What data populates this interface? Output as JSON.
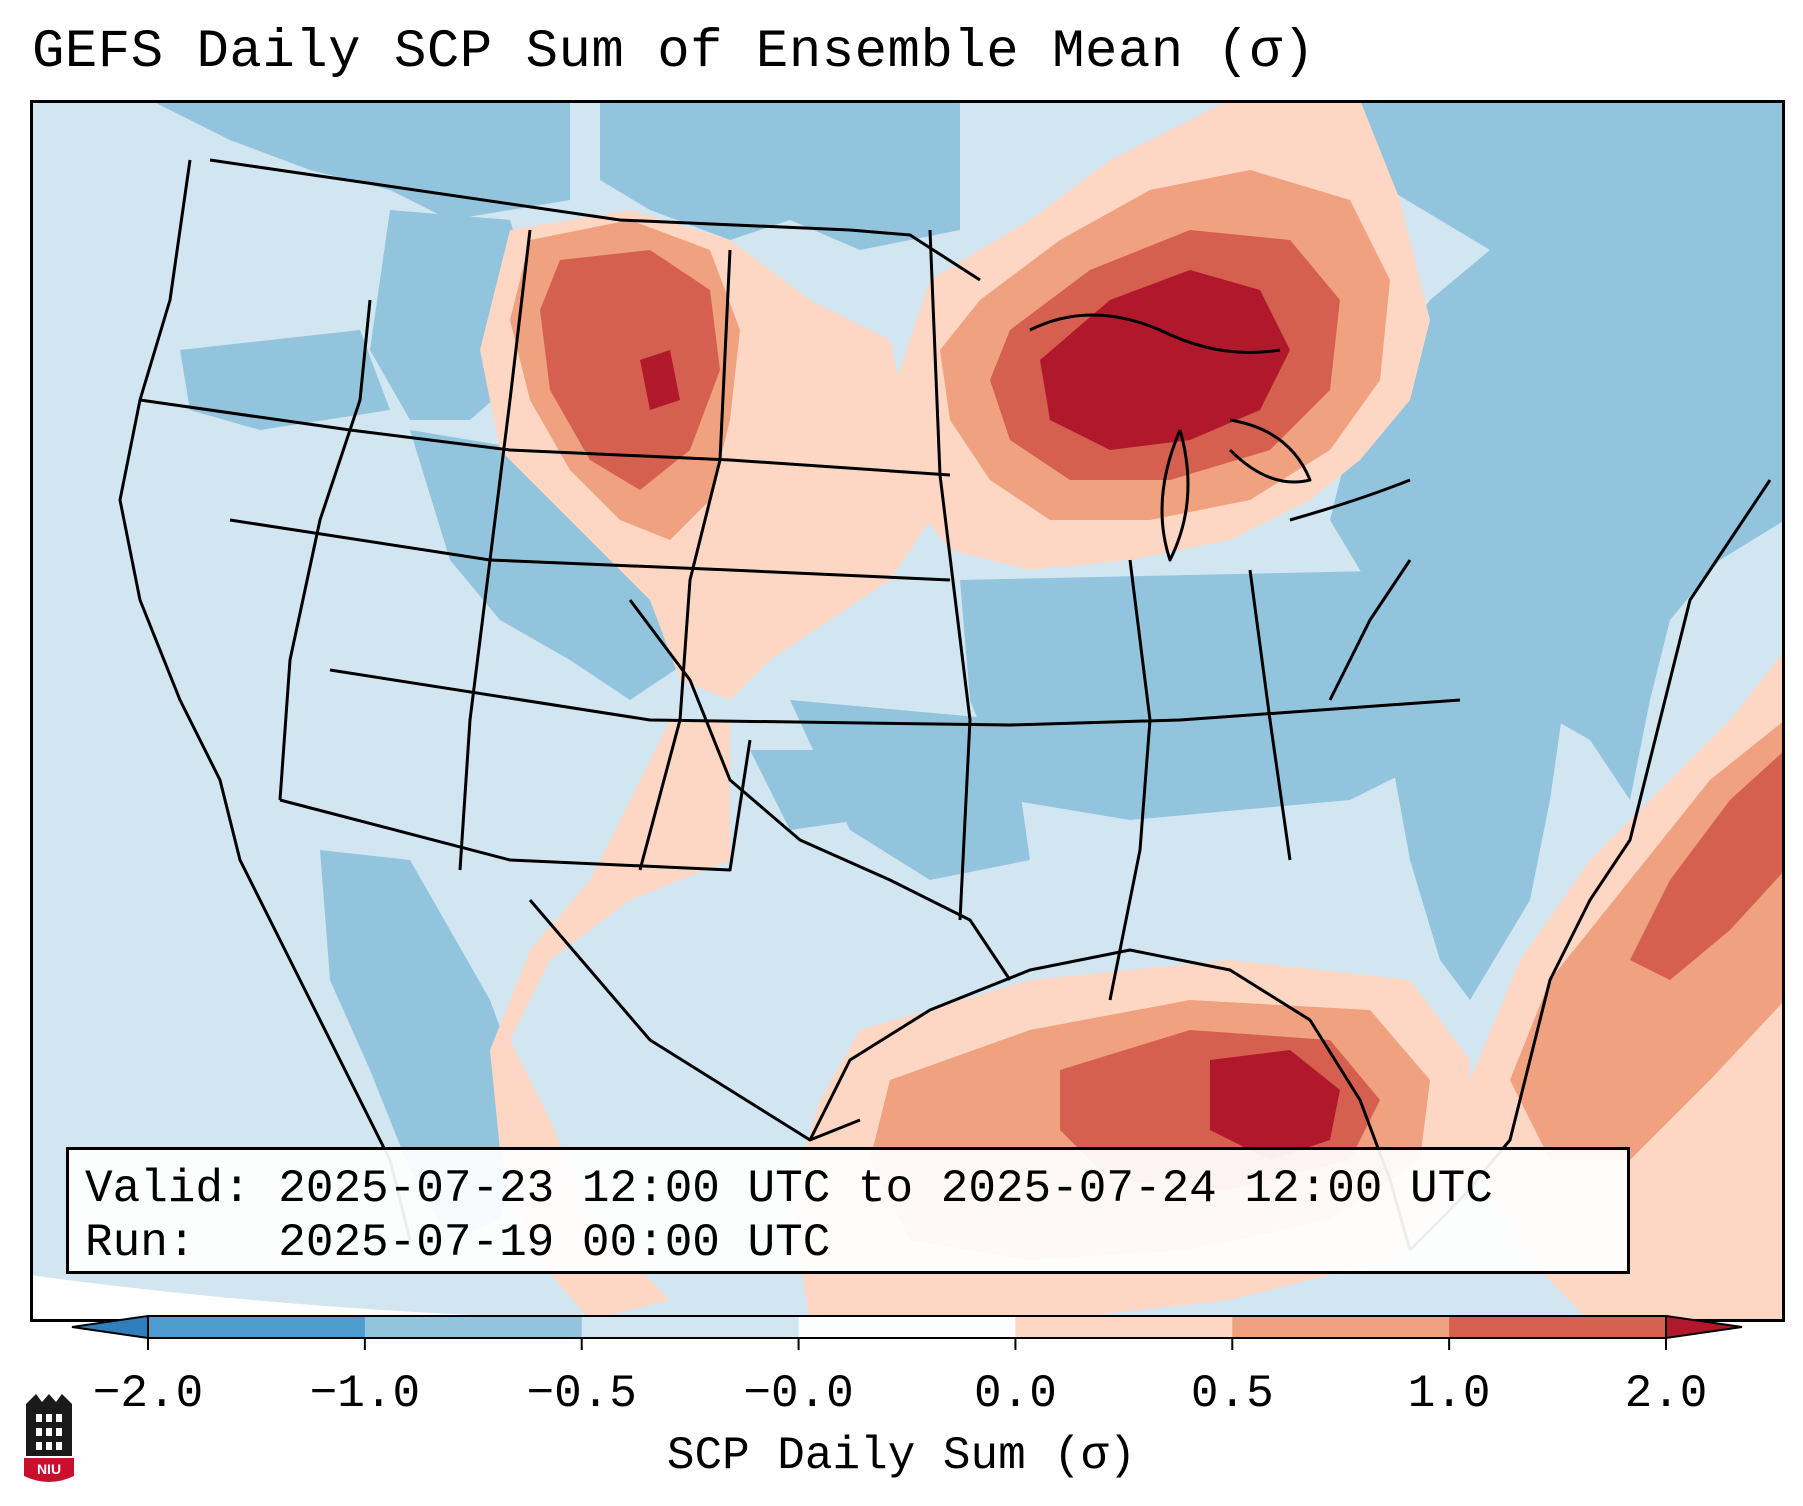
{
  "title": "GEFS Daily SCP Sum of Ensemble Mean (σ)",
  "info": {
    "valid_line": "Valid: 2025-07-23 12:00 UTC to 2025-07-24 12:00 UTC",
    "run_line": "Run:   2025-07-19 00:00 UTC"
  },
  "colorbar": {
    "label": "SCP Daily Sum (σ)",
    "ticks": [
      "−2.0",
      "−1.0",
      "−0.5",
      "−0.0",
      "0.0",
      "0.5",
      "1.0",
      "2.0"
    ],
    "colors": [
      "#2f7fbd",
      "#4f9ccf",
      "#92c4de",
      "#d2e6f1",
      "#fbfcfe",
      "#fdd7c3",
      "#f0a17f",
      "#d5604f",
      "#b2182b"
    ]
  },
  "map_colors": {
    "ocean_background": "#d2e6f1",
    "blue_moderate": "#92c4de",
    "orange_light": "#fdd7c3",
    "orange_mid": "#f0a17f",
    "red": "#d5604f",
    "dark_red": "#b2182b",
    "outlines": "#000000"
  },
  "map_regions": [
    "northern-plains-hotspot",
    "great-lakes-hotspot",
    "gulf-coast-hotspot",
    "atlantic-band",
    "southern-plains-band",
    "south-texas-band"
  ],
  "logo": {
    "text": "NIU"
  }
}
